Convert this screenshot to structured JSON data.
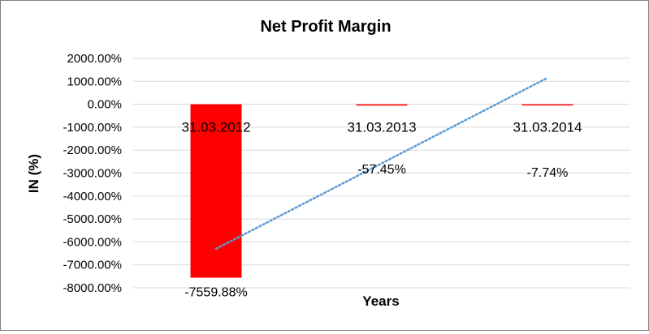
{
  "chart_data": {
    "type": "bar",
    "title": "Net Profit Margin",
    "xlabel": "Years",
    "ylabel": "IN (%)",
    "categories": [
      "31.03.2012",
      "31.03.2013",
      "31.03.2014"
    ],
    "series": [
      {
        "values": [
          -7559.88,
          -57.45,
          -7.74
        ],
        "data_labels": [
          "-7559.88%",
          "-57.45%",
          "-7.74%"
        ],
        "color": "#ff0000"
      }
    ],
    "trendline": {
      "type": "linear",
      "color": "#5b9bd5",
      "style": "dotted",
      "start": {
        "x": "31.03.2012",
        "y": -6300
      },
      "end": {
        "x": "31.03.2014",
        "y": 1150
      }
    },
    "ylim": [
      -8000,
      2000
    ],
    "y_ticks": [
      2000,
      1000,
      0,
      -1000,
      -2000,
      -3000,
      -4000,
      -5000,
      -6000,
      -7000,
      -8000
    ],
    "y_tick_labels": [
      "2000.00%",
      "1000.00%",
      "0.00%",
      "-1000.00%",
      "-2000.00%",
      "-3000.00%",
      "-4000.00%",
      "-5000.00%",
      "-6000.00%",
      "-7000.00%",
      "-8000.00%"
    ],
    "grid": true,
    "gridline_color": "#d9d9d9",
    "legend": "none"
  }
}
